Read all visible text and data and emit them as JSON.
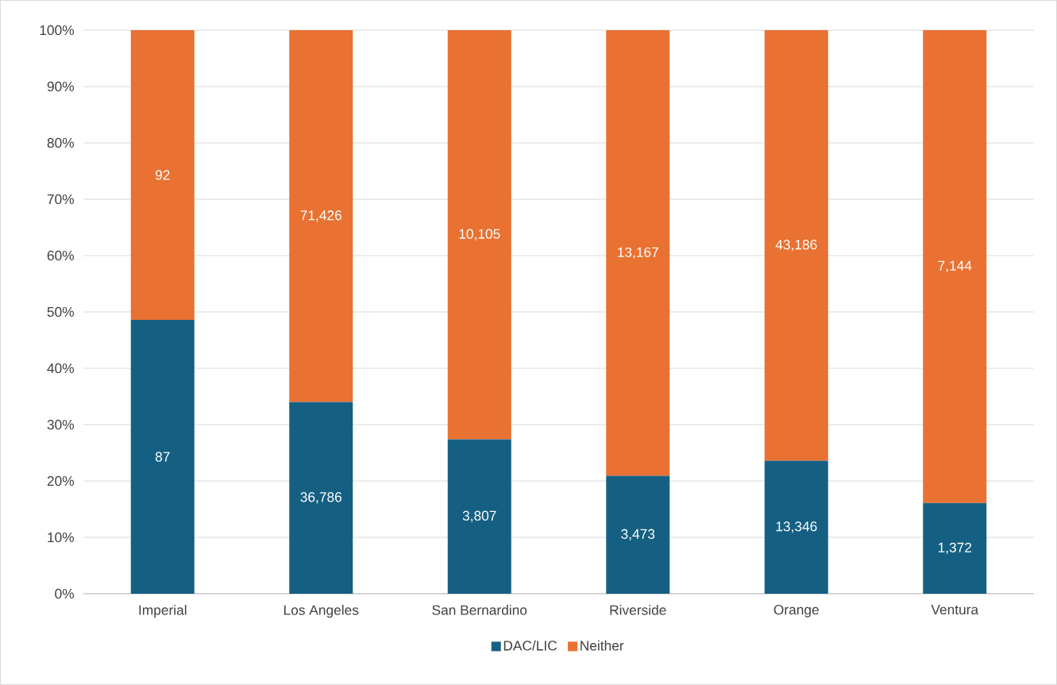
{
  "chart_data": {
    "type": "bar",
    "stacked": true,
    "categories": [
      "Imperial",
      "Los Angeles",
      "San Bernardino",
      "Riverside",
      "Orange",
      "Ventura"
    ],
    "series": [
      {
        "name": "DAC/LIC",
        "color": "#156082",
        "values": [
          48.6,
          34.0,
          27.4,
          20.9,
          23.6,
          16.1
        ]
      },
      {
        "name": "Neither",
        "color": "#e97132",
        "values": [
          51.4,
          66.0,
          72.6,
          79.1,
          76.4,
          83.9
        ]
      }
    ],
    "annotations": [
      "87",
      "36,786",
      "3,807",
      "3,473",
      "13,346",
      "1,372",
      "92",
      "71,426",
      "10,105",
      "13,167",
      "43,186",
      "7,144"
    ],
    "ylim": [
      0,
      100
    ],
    "yticks": [
      {
        "value": 0,
        "label": "0%"
      },
      {
        "value": 10,
        "label": "10%"
      },
      {
        "value": 20,
        "label": "20%"
      },
      {
        "value": 30,
        "label": "30%"
      },
      {
        "value": 40,
        "label": "40%"
      },
      {
        "value": 50,
        "label": "50%"
      },
      {
        "value": 60,
        "label": "60%"
      },
      {
        "value": 70,
        "label": "70%"
      },
      {
        "value": 80,
        "label": "80%"
      },
      {
        "value": 90,
        "label": "90%"
      },
      {
        "value": 100,
        "label": "100%"
      }
    ],
    "grid": "y",
    "legend": "bottom"
  }
}
